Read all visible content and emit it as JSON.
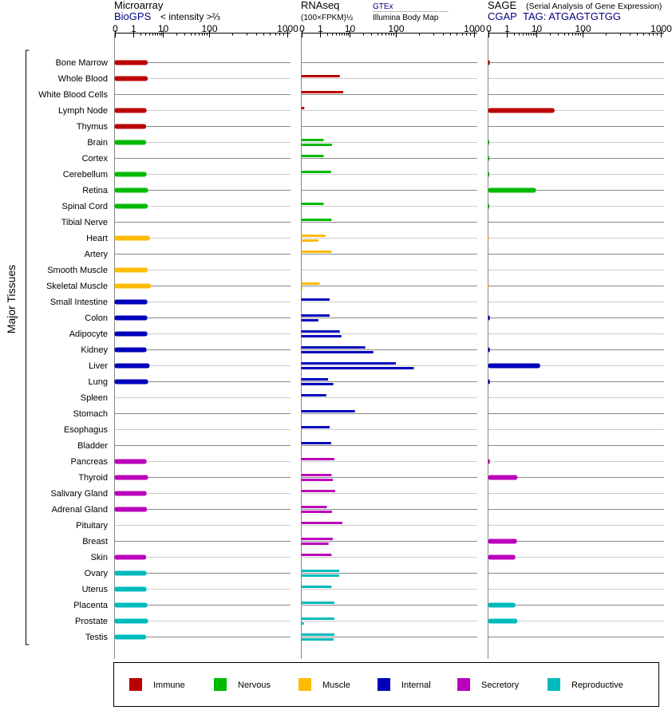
{
  "chart_data": {
    "type": "bar",
    "y_group_label": "Major Tissues",
    "tissues": [
      "Bone Marrow",
      "Whole Blood",
      "White Blood Cells",
      "Lymph Node",
      "Thymus",
      "Brain",
      "Cortex",
      "Cerebellum",
      "Retina",
      "Spinal Cord",
      "Tibial Nerve",
      "Heart",
      "Artery",
      "Smooth Muscle",
      "Skeletal Muscle",
      "Small Intestine",
      "Colon",
      "Adipocyte",
      "Kidney",
      "Liver",
      "Lung",
      "Spleen",
      "Stomach",
      "Esophagus",
      "Bladder",
      "Pancreas",
      "Thyroid",
      "Salivary Gland",
      "Adrenal Gland",
      "Pituitary",
      "Breast",
      "Skin",
      "Ovary",
      "Uterus",
      "Placenta",
      "Prostate",
      "Testis"
    ],
    "categories": [
      "Immune",
      "Immune",
      "Immune",
      "Immune",
      "Immune",
      "Nervous",
      "Nervous",
      "Nervous",
      "Nervous",
      "Nervous",
      "Nervous",
      "Muscle",
      "Muscle",
      "Muscle",
      "Muscle",
      "Internal",
      "Internal",
      "Internal",
      "Internal",
      "Internal",
      "Internal",
      "Internal",
      "Internal",
      "Internal",
      "Internal",
      "Secretory",
      "Secretory",
      "Secretory",
      "Secretory",
      "Secretory",
      "Secretory",
      "Secretory",
      "Reproductive",
      "Reproductive",
      "Reproductive",
      "Reproductive",
      "Reproductive"
    ],
    "category_colors": {
      "Immune": "#bb0000",
      "Nervous": "#00bb00",
      "Muscle": "#ffbb00",
      "Internal": "#0000bb",
      "Secretory": "#bb00bb",
      "Reproductive": "#00bbbb"
    },
    "axis_ticks": [
      0,
      1,
      10,
      100,
      1000
    ],
    "xlim": [
      0,
      1000
    ],
    "panels": {
      "microarray": {
        "title": "Microarray",
        "source": "BioGPS",
        "scale_label": "< intensity >⅔",
        "values": [
          3.6,
          3.6,
          null,
          3.3,
          3.2,
          3.2,
          null,
          3.3,
          3.7,
          3.6,
          null,
          4.2,
          null,
          3.6,
          4.5,
          3.5,
          3.5,
          3.5,
          3.3,
          4.1,
          3.7,
          null,
          null,
          null,
          null,
          3.3,
          3.7,
          3.3,
          3.4,
          null,
          null,
          3.2,
          3.3,
          3.3,
          3.5,
          3.7,
          3.2
        ]
      },
      "rnaseq": {
        "title": "RNAseq",
        "scale_label": "(100×FPKM)½",
        "source_gtex": "GTEx",
        "source_ibm": "Illumina Body Map",
        "gtex_values": [
          null,
          5.2,
          6.5,
          0.12,
          null,
          1.5,
          1.5,
          2.8,
          null,
          1.5,
          2.9,
          1.8,
          2.9,
          null,
          1.0,
          2.5,
          2.5,
          5.2,
          22,
          100,
          2.2,
          1.9,
          13,
          2.5,
          2.8,
          3.6,
          2.9,
          3.8,
          2.0,
          6.2,
          3.2,
          2.9,
          5.0,
          2.9,
          3.6,
          3.6,
          3.6
        ],
        "ibm_values": [
          null,
          null,
          null,
          null,
          null,
          3.0,
          null,
          null,
          null,
          null,
          null,
          0.9,
          null,
          null,
          0.05,
          null,
          0.9,
          5.8,
          33,
          170,
          3.3,
          null,
          null,
          null,
          null,
          null,
          3.2,
          null,
          3.0,
          null,
          2.3,
          null,
          5.0,
          null,
          null,
          0.1,
          3.4
        ]
      },
      "sage": {
        "title": "SAGE",
        "subtitle": "(Serial Analysis of Gene Expression)",
        "source": "CGAP",
        "tag_label": "TAG: ATGAGTGTGG",
        "values": [
          0.07,
          null,
          null,
          25,
          null,
          0.05,
          0.05,
          0.05,
          9.5,
          0.05,
          null,
          0.02,
          null,
          null,
          0.02,
          null,
          0.07,
          null,
          0.07,
          12,
          0.07,
          null,
          null,
          null,
          null,
          0.07,
          2.7,
          null,
          null,
          null,
          2.6,
          2.3,
          null,
          null,
          2.3,
          2.7,
          null
        ]
      }
    },
    "legend": [
      "Immune",
      "Nervous",
      "Muscle",
      "Internal",
      "Secretory",
      "Reproductive"
    ]
  }
}
